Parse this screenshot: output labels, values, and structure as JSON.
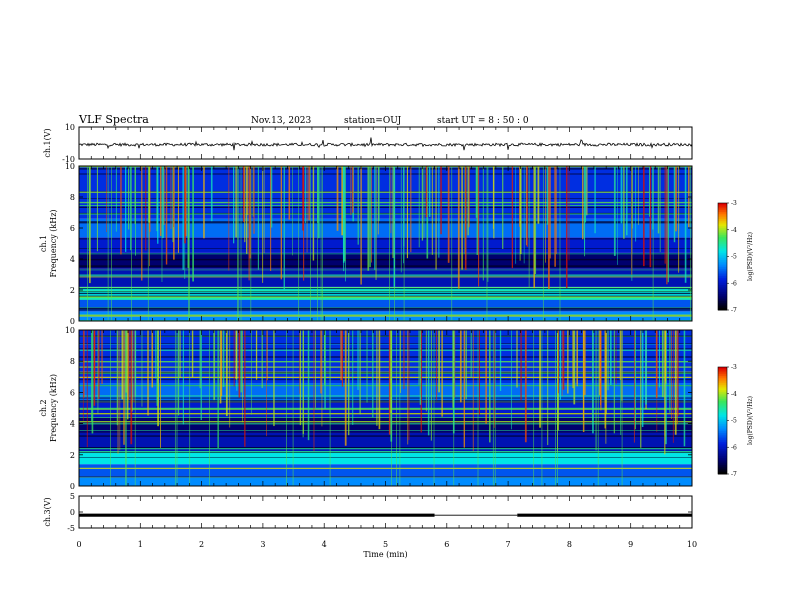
{
  "header": {
    "title": "VLF Spectra",
    "date": "Nov.13, 2023",
    "station": "station=OUJ",
    "start": "start  UT =  8 : 50 : 0"
  },
  "chart_data": [
    {
      "type": "line",
      "name": "ch1-waveform",
      "ylabel": "ch.1(V)",
      "ylim": [
        -10,
        10
      ],
      "ytick_labels": [
        "10",
        "-10"
      ],
      "baseline": -1,
      "x": [
        0,
        9.8
      ]
    },
    {
      "type": "heatmap",
      "name": "ch1-spectrogram",
      "ylabel": "ch.1\nFrequency (kHz)",
      "ylabel_line1": "ch.1",
      "ylabel_line2": "Frequency  (kHz)",
      "ylim": [
        0,
        10
      ],
      "ytick_labels": [
        "0",
        "2",
        "4",
        "6",
        "8",
        "10"
      ],
      "xlim": [
        0,
        10
      ],
      "colorbar": {
        "label": "log(PSD)(V²/Hz)",
        "range": [
          -7,
          -3
        ],
        "tick_labels": [
          "-3",
          "-4",
          "-5",
          "-6",
          "-7"
        ]
      }
    },
    {
      "type": "heatmap",
      "name": "ch2-spectrogram",
      "ylabel_line1": "ch.2",
      "ylabel_line2": "Frequency  (kHz)",
      "ylim": [
        0,
        10
      ],
      "ytick_labels": [
        "0",
        "2",
        "4",
        "6",
        "8",
        "10"
      ],
      "xlim": [
        0,
        10
      ],
      "colorbar": {
        "label": "log(PSD)(V²/Hz)",
        "range": [
          -7,
          -3
        ],
        "tick_labels": [
          "-3",
          "-4",
          "-5",
          "-6",
          "-7"
        ]
      }
    },
    {
      "type": "line",
      "name": "ch3-signal",
      "ylabel": "ch.3(V)",
      "ylim": [
        -5,
        5
      ],
      "ytick_labels": [
        "5",
        "0",
        "-5"
      ],
      "level": -1,
      "gap_x": [
        5.8,
        7.15
      ],
      "xlim": [
        0,
        10
      ],
      "xlabel": "Time  (min)",
      "xtick_labels": [
        "0",
        "1",
        "2",
        "3",
        "4",
        "5",
        "6",
        "7",
        "8",
        "9",
        "10"
      ]
    }
  ]
}
